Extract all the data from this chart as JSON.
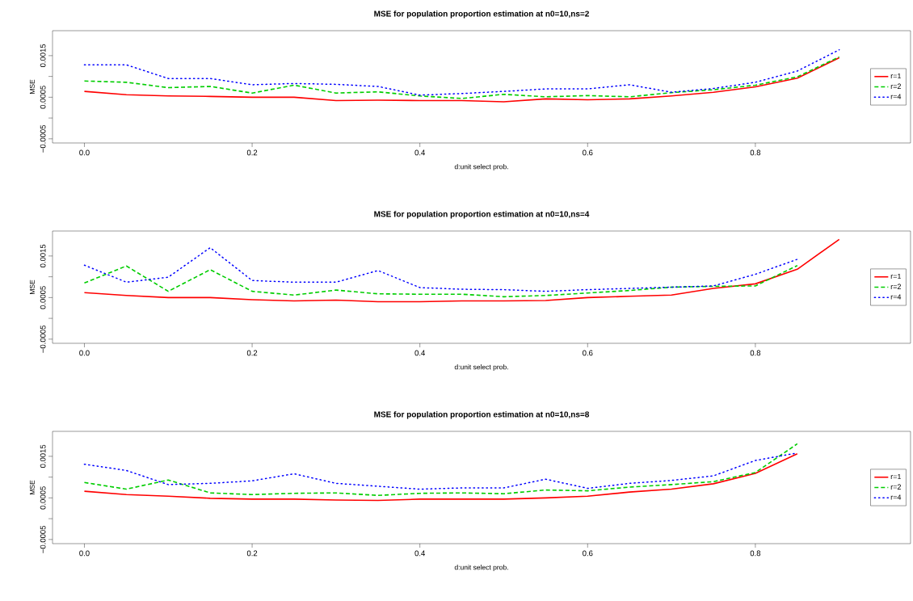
{
  "chart_data": [
    {
      "type": "line",
      "title": "MSE for population proportion estimation at n0=10,ns=2",
      "xlabel": "d:unit select prob.",
      "ylabel": "MSE",
      "legend": "right",
      "x": [
        0,
        0.05,
        0.1,
        0.15,
        0.2,
        0.25,
        0.3,
        0.35,
        0.4,
        0.45,
        0.5,
        0.55,
        0.6,
        0.65,
        0.7,
        0.75,
        0.8,
        0.85,
        0.9
      ],
      "xlim": [
        -0.038,
        0.985
      ],
      "ylim": [
        -0.0006,
        0.0021
      ],
      "xticks": [
        {
          "value": 0,
          "label": "0.0"
        },
        {
          "value": 0.2,
          "label": "0.2"
        },
        {
          "value": 0.4,
          "label": "0.4"
        },
        {
          "value": 0.6,
          "label": "0.6"
        },
        {
          "value": 0.8,
          "label": "0.8"
        }
      ],
      "yticks": [
        {
          "value": -0.0005,
          "label": "−0.0005"
        },
        {
          "value": 0,
          "label": null
        },
        {
          "value": 0.0005,
          "label": "0.0005"
        },
        {
          "value": 0.001,
          "label": null
        },
        {
          "value": 0.0015,
          "label": "0.0015"
        }
      ],
      "series": [
        {
          "name": "r=1",
          "color": "#ff0000",
          "line_style": "solid",
          "values": [
            0.00064,
            0.00056,
            0.00053,
            0.00052,
            0.0005,
            0.0005,
            0.00042,
            0.00043,
            0.00042,
            0.00042,
            0.00039,
            0.00046,
            0.00044,
            0.00046,
            0.00053,
            0.00062,
            0.00075,
            0.00096,
            0.00145
          ]
        },
        {
          "name": "r=2",
          "color": "#00cd00",
          "line_style": "dashed",
          "values": [
            0.00089,
            0.00086,
            0.00073,
            0.00076,
            0.0006,
            0.00079,
            0.0006,
            0.00063,
            0.00053,
            0.00047,
            0.00057,
            0.00051,
            0.00054,
            0.00051,
            0.00061,
            0.00068,
            0.00079,
            0.00099,
            0.00147
          ]
        },
        {
          "name": "r=4",
          "color": "#0000ff",
          "line_style": "dotted",
          "values": [
            0.00128,
            0.00128,
            0.00095,
            0.00095,
            0.0008,
            0.00083,
            0.00081,
            0.00076,
            0.00055,
            0.00059,
            0.00064,
            0.0007,
            0.0007,
            0.0008,
            0.00062,
            0.00071,
            0.00086,
            0.00113,
            0.00164
          ]
        }
      ]
    },
    {
      "type": "line",
      "title": "MSE for population proportion estimation at n0=10,ns=4",
      "xlabel": "d:unit select prob.",
      "ylabel": "MSE",
      "legend": "right",
      "x": [
        0,
        0.05,
        0.1,
        0.15,
        0.2,
        0.25,
        0.3,
        0.35,
        0.4,
        0.45,
        0.5,
        0.55,
        0.6,
        0.65,
        0.7,
        0.75,
        0.8,
        0.85,
        0.9
      ],
      "xlim": [
        -0.038,
        0.985
      ],
      "ylim": [
        -0.0006,
        0.0021
      ],
      "xticks": [
        {
          "value": 0,
          "label": "0.0"
        },
        {
          "value": 0.2,
          "label": "0.2"
        },
        {
          "value": 0.4,
          "label": "0.4"
        },
        {
          "value": 0.6,
          "label": "0.6"
        },
        {
          "value": 0.8,
          "label": "0.8"
        }
      ],
      "yticks": [
        {
          "value": -0.0005,
          "label": "−0.0005"
        },
        {
          "value": 0,
          "label": null
        },
        {
          "value": 0.0005,
          "label": "0.0005"
        },
        {
          "value": 0.001,
          "label": null
        },
        {
          "value": 0.0015,
          "label": "0.0015"
        }
      ],
      "series": [
        {
          "name": "r=1",
          "color": "#ff0000",
          "line_style": "solid",
          "values": [
            0.00062,
            0.00055,
            0.0005,
            0.0005,
            0.00045,
            0.00042,
            0.00044,
            0.0004,
            0.0004,
            0.00042,
            0.00042,
            0.00043,
            0.0005,
            0.00053,
            0.00056,
            0.00072,
            0.00083,
            0.00118,
            0.0019
          ]
        },
        {
          "name": "r=2",
          "color": "#00cd00",
          "line_style": "dashed",
          "values": [
            0.00085,
            0.00126,
            0.00065,
            0.00117,
            0.00065,
            0.00056,
            0.00068,
            0.00059,
            0.00058,
            0.00058,
            0.00052,
            0.00055,
            0.00061,
            0.00067,
            0.00075,
            0.00077,
            0.00078,
            0.00127,
            null
          ]
        },
        {
          "name": "r=4",
          "color": "#0000ff",
          "line_style": "dotted",
          "values": [
            0.00128,
            0.00087,
            0.00099,
            0.0017,
            0.00091,
            0.00087,
            0.00087,
            0.00115,
            0.00074,
            0.0007,
            0.00069,
            0.00065,
            0.00069,
            0.00072,
            0.00075,
            0.00078,
            0.00106,
            0.00142,
            null
          ]
        }
      ]
    },
    {
      "type": "line",
      "title": "MSE for population proportion estimation at n0=10,ns=8",
      "xlabel": "d:unit select prob.",
      "ylabel": "MSE",
      "legend": "right",
      "x": [
        0,
        0.05,
        0.1,
        0.15,
        0.2,
        0.25,
        0.3,
        0.35,
        0.4,
        0.45,
        0.5,
        0.55,
        0.6,
        0.65,
        0.7,
        0.75,
        0.8,
        0.85
      ],
      "xlim": [
        -0.038,
        0.985
      ],
      "ylim": [
        -0.0006,
        0.0021
      ],
      "xticks": [
        {
          "value": 0,
          "label": "0.0"
        },
        {
          "value": 0.2,
          "label": "0.2"
        },
        {
          "value": 0.4,
          "label": "0.4"
        },
        {
          "value": 0.6,
          "label": "0.6"
        },
        {
          "value": 0.8,
          "label": "0.8"
        }
      ],
      "yticks": [
        {
          "value": -0.0005,
          "label": "−0.0005"
        },
        {
          "value": 0,
          "label": null
        },
        {
          "value": 0.0005,
          "label": "0.0005"
        },
        {
          "value": 0.001,
          "label": null
        },
        {
          "value": 0.0015,
          "label": "0.0015"
        }
      ],
      "series": [
        {
          "name": "r=1",
          "color": "#ff0000",
          "line_style": "solid",
          "values": [
            0.00066,
            0.00058,
            0.00054,
            0.00049,
            0.00047,
            0.00047,
            0.00045,
            0.00044,
            0.00047,
            0.00047,
            0.00047,
            0.0005,
            0.00054,
            0.00064,
            0.00071,
            0.00084,
            0.00109,
            0.00156
          ]
        },
        {
          "name": "r=2",
          "color": "#00cd00",
          "line_style": "dashed",
          "values": [
            0.00087,
            0.00071,
            0.00093,
            0.00062,
            0.00058,
            0.00061,
            0.00062,
            0.00056,
            0.00061,
            0.00062,
            0.0006,
            0.00069,
            0.00067,
            0.00076,
            0.00082,
            0.00089,
            0.00111,
            0.0018
          ]
        },
        {
          "name": "r=4",
          "color": "#0000ff",
          "line_style": "dotted",
          "values": [
            0.00131,
            0.00116,
            0.00082,
            0.00085,
            0.00091,
            0.00108,
            0.00085,
            0.00078,
            0.00071,
            0.00074,
            0.00074,
            0.00095,
            0.00073,
            0.00085,
            0.00092,
            0.00103,
            0.0014,
            0.00158
          ]
        }
      ]
    }
  ]
}
